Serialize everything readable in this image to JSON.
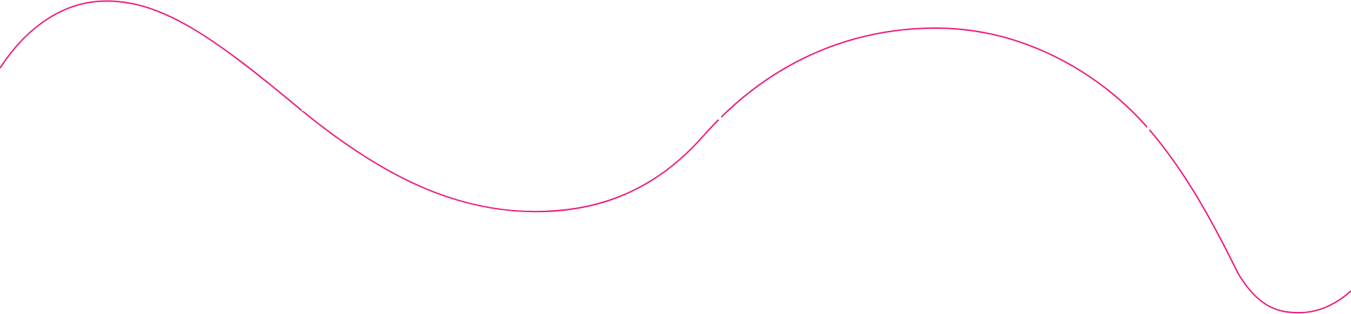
{
  "decoration": {
    "type": "wave-line",
    "stroke_color": "#ec1a7c",
    "background_color": "#ffffff",
    "segment_breaks": 3
  }
}
